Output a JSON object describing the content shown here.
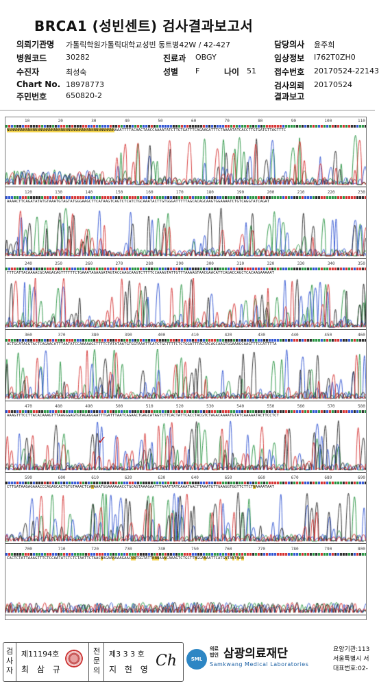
{
  "report": {
    "title": "BRCA1 (성빈센트) 검사결과보고서",
    "institution_label": "의뢰기관명",
    "institution_value": "가톨릭학원가톨릭대학교성빈 동트병42W / 42-427",
    "hospital_code_label": "병원코드",
    "hospital_code_value": "30282",
    "dept_label": "진료과",
    "dept_value": "OBGY",
    "patient_label": "수진자",
    "patient_value": "최성숙",
    "sex_label": "성별",
    "sex_value": "F",
    "age_label": "나이",
    "age_value": "51",
    "chart_label": "Chart No.",
    "chart_value": "18978773",
    "id_label": "주민번호",
    "id_value": "650820-2",
    "doctor_label": "담당의사",
    "doctor_value": "윤주희",
    "clinical_label": "임상정보",
    "clinical_value": "I762T0ZH0",
    "receipt_label": "접수번호",
    "receipt_value": "20170524-22143",
    "request_label": "검사의뢰",
    "request_value": "20170524",
    "result_label": "결과보고",
    "result_value": ""
  },
  "chromatogram": {
    "panels": [
      {
        "ticks": [
          "10",
          "20",
          "30",
          "40",
          "50",
          "60",
          "70",
          "80",
          "90",
          "100",
          "110"
        ],
        "seq": "NNNNNNNNNNNNNNNNNNNNNNNNNNNNNNNNNNNNNNNNNNNNNNAAATTTTACAACTAACCAAAATATCTTGTGATTTCAGAAGATTTCTAAAATATCACCTTGTGATGTTAGTTTC"
      },
      {
        "ticks": [
          "120",
          "130",
          "140",
          "150",
          "160",
          "170",
          "180",
          "190",
          "200",
          "210",
          "220",
          "230"
        ],
        "seq": "AAAACTTCAGATATATGTAAATGTAGTATGGGAAGCTTCATAAGTCAGTCTCATCTGCAAATACTTGTGGGATTTTTAGCACAGCAAGTGGAAAATCTGTCAGGTATCAGAT"
      },
      {
        "ticks": [
          "240",
          "250",
          "260",
          "270",
          "280",
          "290",
          "300",
          "310",
          "320",
          "330",
          "340",
          "350"
        ],
        "seq": "TTTCATTACAAAACGCAAGACAGTTTTTTCTGAAATAGAAGATAGTACCAAGCAAGTCTTTTCCAAAGTATTGTTTAAAAGTAACGAACATTCAGACCAGCTCACAAGAAAAAT"
      },
      {
        "ticks": [
          "360",
          "370",
          "380",
          "390",
          "400",
          "410",
          "420",
          "430",
          "440",
          "450",
          "460"
        ],
        "seq": "ACTGCATACGTACTCAGAACATTTAATATCCAAAAAGCTTTTCTATATAATGTGGTAAATTCATCTGCTTTTCTCTGGATTTAGTACAGCAAGTGGAAAGCAAGTTTCCATTTTA"
      },
      {
        "ticks": [
          "470",
          "480",
          "490",
          "500",
          "510",
          "520",
          "530",
          "540",
          "550",
          "560",
          "570",
          "580"
        ],
        "seq": "AAAGTTTCCTTACACAAAGTTTAAGGGAGTGTAGAGGAATTTGATTTAATCAGAACTGAGCATAGTCTTCACTATTCACCTACGTCTAGACAAAATGTATCAAAAATACTTCCTCT"
      },
      {
        "ticks": [
          "590",
          "600",
          "610",
          "620",
          "630",
          "640",
          "650",
          "660",
          "670",
          "680",
          "690"
        ],
        "seq": "CTTGATAAGAGAAACCCAGAGCACTGTGTAAACTCANAAATGGAAAAAACCTGCAGTAAAGAATTTAAATTATCAAATAACTTAAATGTTGAAGGTGGTTCTTCTNAAAATAAT"
      },
      {
        "ticks": [
          "700",
          "710",
          "720",
          "730",
          "740",
          "750",
          "760",
          "770",
          "780",
          "790",
          "800"
        ],
        "seq": "CACTCTATTAAAGTTTCTCCAATATCTCTCTAATTCTAACNAGAANAAAGAACNNTGGTATTNNNAANCAAAGTCTGCTTNGGANAATTCATGNTANTNAN"
      }
    ],
    "mutation_mark": "✓"
  },
  "footer": {
    "examiner_vertical": "검사자",
    "examiner_no": "제11194호",
    "examiner_name": "최 삼 규",
    "reviewer_vertical": "전문의",
    "reviewer_no": "제3 3 3 호",
    "reviewer_name": "지 현 영",
    "signature": "Ch",
    "logo_text": "SML",
    "org_small_1": "의료",
    "org_small_2": "법인",
    "org_name": "삼광의료재단",
    "org_english": "Samkwang Medical Laboratories",
    "info_1": "요양기관:113",
    "info_2": "서울특별시 서",
    "info_3": "대표번호:02-"
  },
  "colors": {
    "A": "#1f8f3a",
    "C": "#2a4fd0",
    "G": "#222222",
    "T": "#d22a2a",
    "mark": "#c41a1a",
    "logo": "#2d86c4"
  }
}
